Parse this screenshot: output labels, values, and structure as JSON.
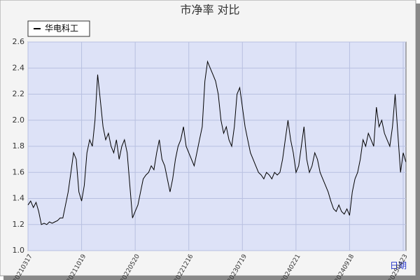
{
  "chart_data": {
    "type": "line",
    "title": "市净率  对比",
    "x_label": "日期",
    "categories": [
      "20210317",
      null,
      null,
      null,
      null,
      null,
      null,
      null,
      null,
      null,
      null,
      null,
      null,
      null,
      null,
      null,
      null,
      null,
      null,
      null,
      "20211019",
      null,
      null,
      null,
      null,
      null,
      null,
      null,
      null,
      null,
      null,
      null,
      null,
      null,
      null,
      null,
      null,
      null,
      null,
      null,
      "20220520",
      null,
      null,
      null,
      null,
      null,
      null,
      null,
      null,
      null,
      null,
      null,
      null,
      null,
      null,
      null,
      null,
      null,
      null,
      null,
      "20221216",
      null,
      null,
      null,
      null,
      null,
      null,
      null,
      null,
      null,
      null,
      null,
      null,
      null,
      null,
      null,
      null,
      null,
      null,
      null,
      "20230719",
      null,
      null,
      null,
      null,
      null,
      null,
      null,
      null,
      null,
      null,
      null,
      null,
      null,
      null,
      null,
      null,
      null,
      null,
      null,
      "20240221",
      null,
      null,
      null,
      null,
      null,
      null,
      null,
      null,
      null,
      null,
      null,
      null,
      null,
      null,
      null,
      null,
      null,
      null,
      null,
      "20240918",
      null,
      null,
      null,
      null,
      null,
      null,
      null,
      null,
      null,
      null,
      null,
      null,
      null,
      null,
      null,
      null,
      null,
      null,
      null,
      "20250423",
      null
    ],
    "series": [
      {
        "name": "华电科工",
        "color": "#000000",
        "values": [
          1.35,
          1.38,
          1.33,
          1.37,
          1.3,
          1.2,
          1.21,
          1.2,
          1.22,
          1.21,
          1.22,
          1.23,
          1.25,
          1.25,
          1.35,
          1.45,
          1.6,
          1.75,
          1.7,
          1.45,
          1.38,
          1.5,
          1.75,
          1.85,
          1.8,
          2.0,
          2.35,
          2.15,
          1.95,
          1.85,
          1.9,
          1.8,
          1.75,
          1.85,
          1.7,
          1.8,
          1.85,
          1.75,
          1.5,
          1.25,
          1.3,
          1.35,
          1.45,
          1.55,
          1.58,
          1.6,
          1.65,
          1.62,
          1.75,
          1.85,
          1.7,
          1.65,
          1.55,
          1.45,
          1.55,
          1.7,
          1.8,
          1.85,
          1.95,
          1.8,
          1.75,
          1.7,
          1.65,
          1.75,
          1.85,
          1.95,
          2.3,
          2.45,
          2.4,
          2.35,
          2.3,
          2.2,
          2.0,
          1.9,
          1.95,
          1.85,
          1.8,
          1.95,
          2.2,
          2.25,
          2.1,
          1.95,
          1.85,
          1.75,
          1.7,
          1.65,
          1.6,
          1.58,
          1.55,
          1.6,
          1.58,
          1.55,
          1.6,
          1.58,
          1.6,
          1.7,
          1.85,
          2.0,
          1.85,
          1.75,
          1.6,
          1.65,
          1.8,
          1.95,
          1.7,
          1.6,
          1.65,
          1.75,
          1.7,
          1.6,
          1.55,
          1.5,
          1.45,
          1.38,
          1.32,
          1.3,
          1.35,
          1.3,
          1.28,
          1.32,
          1.27,
          1.45,
          1.55,
          1.6,
          1.7,
          1.85,
          1.8,
          1.9,
          1.85,
          1.8,
          2.1,
          1.95,
          2.0,
          1.9,
          1.85,
          1.8,
          1.95,
          2.2,
          1.9,
          1.6,
          1.75,
          1.68
        ]
      }
    ],
    "ylim": [
      1.0,
      2.6
    ],
    "yticks": [
      {
        "value": 1.0,
        "label": "1.0"
      },
      1.2,
      1.4,
      1.6,
      1.8,
      {
        "value": 2.0,
        "label": "2.0"
      },
      2.2,
      2.4,
      2.6
    ],
    "grid": true,
    "legend": "top-left"
  }
}
